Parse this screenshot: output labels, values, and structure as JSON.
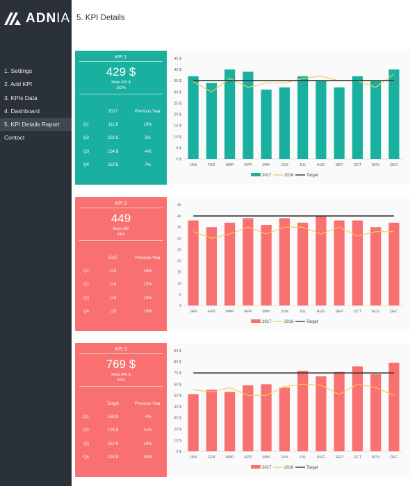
{
  "brand": {
    "logo_text_bold": "ADN",
    "logo_text_light": "IA"
  },
  "header": {
    "title": "5. KPI Details"
  },
  "sidebar": {
    "items": [
      {
        "label": "1. Settings",
        "active": false
      },
      {
        "label": "2. Add KPI",
        "active": false
      },
      {
        "label": "3. KPIs Data",
        "active": false
      },
      {
        "label": "4. Dashboard",
        "active": false
      },
      {
        "label": "5. KPI Details Report",
        "active": true
      },
      {
        "label": "Contact",
        "active": false
      }
    ]
  },
  "kpis": [
    {
      "name": "KPI 1",
      "value": "429 $",
      "meta": "Meta 420 $",
      "pct": "102%",
      "color": "#1ab0a0",
      "col1": "2017",
      "col2": "Previous Year",
      "rows": [
        [
          "Q1",
          "111 $",
          "10%"
        ],
        [
          "Q2",
          "102 $",
          "2%"
        ],
        [
          "Q3",
          "104 $",
          "-4%"
        ],
        [
          "Q4",
          "112 $",
          "7%"
        ]
      ]
    },
    {
      "name": "KPI 2",
      "value": "449",
      "meta": "Meta 480",
      "pct": "94%",
      "color": "#f87070",
      "col1": "2017",
      "col2": "Previous Year",
      "rows": [
        [
          "Q1",
          "110",
          "16%"
        ],
        [
          "Q2",
          "114",
          "12%"
        ],
        [
          "Q3",
          "115",
          "13%"
        ],
        [
          "Q4",
          "110",
          "13%"
        ]
      ]
    },
    {
      "name": "KPI 3",
      "value": "769 $",
      "meta": "Meta 840 $",
      "pct": "92%",
      "color": "#f87070",
      "col1": "Target",
      "col2": "Previous Year",
      "rows": [
        [
          "Q1",
          "159 $",
          "-4%"
        ],
        [
          "Q2",
          "176 $",
          "11%"
        ],
        [
          "Q3",
          "210 $",
          "24%"
        ],
        [
          "Q4",
          "224 $",
          "34%"
        ]
      ]
    }
  ],
  "chart_data": [
    {
      "type": "bar",
      "categories": [
        "JAN",
        "FEB",
        "MAR",
        "APR",
        "MAY",
        "JUN",
        "JUL",
        "AUG",
        "SEP",
        "OCT",
        "NOV",
        "DEC"
      ],
      "ylim": [
        0,
        45
      ],
      "ystep": 5,
      "tick_suffix": " $",
      "grid": false,
      "legend": "bottom",
      "series": [
        {
          "name": "2017",
          "kind": "bar",
          "color": "#1ab0a0",
          "values": [
            37,
            34,
            40,
            39,
            31,
            32,
            37,
            35,
            32,
            37,
            35,
            40
          ]
        },
        {
          "name": "2016",
          "kind": "line",
          "color": "#f2cf57",
          "values": [
            34.5,
            30,
            36,
            32,
            34,
            34,
            36,
            37,
            35,
            35,
            32,
            38
          ]
        },
        {
          "name": "Target",
          "kind": "line",
          "color": "#333333",
          "values": [
            35,
            35,
            35,
            35,
            35,
            35,
            35,
            35,
            35,
            35,
            35,
            35
          ]
        }
      ]
    },
    {
      "type": "bar",
      "categories": [
        "JAN",
        "FEB",
        "MAR",
        "APR",
        "MAY",
        "JUN",
        "JUL",
        "AUG",
        "SEP",
        "OCT",
        "NOV",
        "DEC"
      ],
      "ylim": [
        0,
        45
      ],
      "ystep": 5,
      "tick_suffix": "",
      "grid": false,
      "legend": "bottom",
      "series": [
        {
          "name": "2017",
          "kind": "bar",
          "color": "#f87070",
          "values": [
            38,
            35,
            37,
            39,
            36,
            39,
            37,
            40,
            38,
            38,
            35,
            37
          ]
        },
        {
          "name": "2016",
          "kind": "line",
          "color": "#f2cf57",
          "values": [
            33,
            30,
            32,
            35,
            32,
            35,
            35,
            32,
            35,
            31,
            33,
            33
          ]
        },
        {
          "name": "Target",
          "kind": "line",
          "color": "#333333",
          "values": [
            40,
            40,
            40,
            40,
            40,
            40,
            40,
            40,
            40,
            40,
            40,
            40
          ]
        }
      ]
    },
    {
      "type": "bar",
      "categories": [
        "JAN",
        "FEB",
        "MAR",
        "APR",
        "MAY",
        "JUN",
        "JUL",
        "AUG",
        "SEP",
        "OCT",
        "NOV",
        "DEC"
      ],
      "ylim": [
        0,
        90
      ],
      "ystep": 10,
      "tick_suffix": " $",
      "grid": false,
      "legend": "bottom",
      "series": [
        {
          "name": "2017",
          "kind": "bar",
          "color": "#f87070",
          "values": [
            51,
            55,
            53,
            59,
            60,
            57,
            72,
            67,
            71,
            76,
            69,
            79
          ]
        },
        {
          "name": "2016",
          "kind": "line",
          "color": "#f2cf57",
          "values": [
            55,
            53,
            57,
            50,
            50,
            58,
            60,
            59,
            51,
            60,
            57,
            50
          ]
        },
        {
          "name": "Target",
          "kind": "line",
          "color": "#333333",
          "values": [
            70,
            70,
            70,
            70,
            70,
            70,
            70,
            70,
            70,
            70,
            70,
            70
          ]
        }
      ]
    }
  ]
}
